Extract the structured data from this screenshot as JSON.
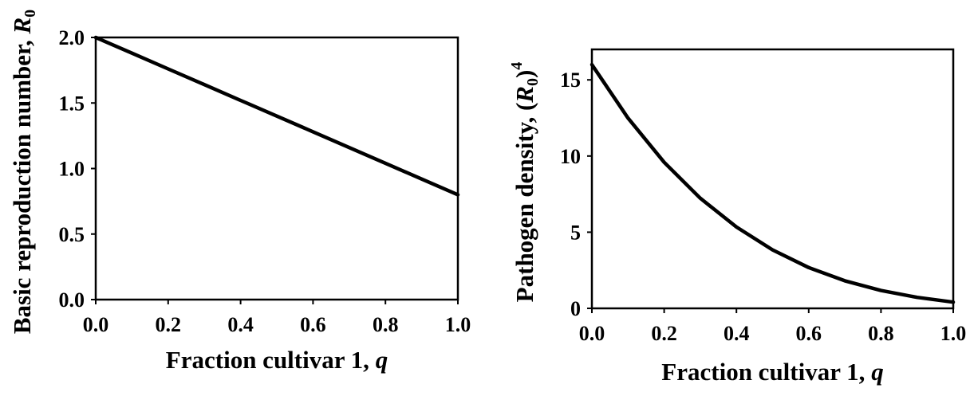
{
  "chart_data": [
    {
      "type": "line",
      "xlabel": {
        "text": "Fraction cultivar 1, ",
        "var": "q"
      },
      "ylabel": {
        "text": "Basic reproduction number, ",
        "var": "R",
        "sub": "0"
      },
      "xlim": [
        0,
        1
      ],
      "ylim": [
        0,
        2
      ],
      "xticks": [
        "0.0",
        "0.2",
        "0.4",
        "0.6",
        "0.8",
        "1.0"
      ],
      "yticks": [
        "0.0",
        "0.5",
        "1.0",
        "1.5",
        "2.0"
      ],
      "grid": false,
      "legend": "none",
      "series": [
        {
          "x": [
            0,
            0.1,
            0.2,
            0.3,
            0.4,
            0.5,
            0.6,
            0.7,
            0.8,
            0.9,
            1.0
          ],
          "y": [
            2.0,
            1.88,
            1.76,
            1.64,
            1.52,
            1.4,
            1.28,
            1.16,
            1.04,
            0.92,
            0.8
          ],
          "color": "#000000"
        }
      ]
    },
    {
      "type": "line",
      "xlabel": {
        "text": "Fraction cultivar 1, ",
        "var": "q"
      },
      "ylabel": {
        "text": "Pathogen density, (",
        "var": "R",
        "sub": "0",
        "close": ")",
        "sup": "4"
      },
      "xlim": [
        0,
        1
      ],
      "ylim": [
        0,
        17
      ],
      "xticks": [
        "0.0",
        "0.2",
        "0.4",
        "0.6",
        "0.8",
        "1.0"
      ],
      "yticks": [
        "0",
        "5",
        "10",
        "15"
      ],
      "grid": false,
      "legend": "none",
      "series": [
        {
          "x": [
            0,
            0.1,
            0.2,
            0.3,
            0.4,
            0.5,
            0.6,
            0.7,
            0.8,
            0.9,
            1.0
          ],
          "y": [
            16.0,
            12.49,
            9.59,
            7.23,
            5.34,
            3.84,
            2.68,
            1.81,
            1.17,
            0.72,
            0.41
          ],
          "color": "#000000"
        }
      ]
    }
  ]
}
